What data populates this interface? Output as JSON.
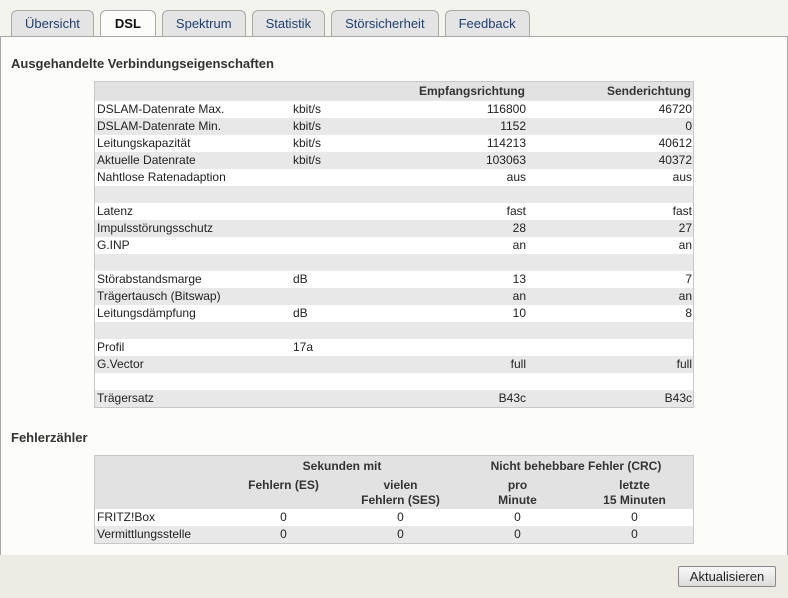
{
  "tabs": [
    {
      "label": "Übersicht"
    },
    {
      "label": "DSL",
      "active": true
    },
    {
      "label": "Spektrum"
    },
    {
      "label": "Statistik"
    },
    {
      "label": "Störsicherheit"
    },
    {
      "label": "Feedback"
    }
  ],
  "properties": {
    "title": "Ausgehandelte Verbindungseigenschaften",
    "headers": {
      "receive": "Empfangsrichtung",
      "send": "Senderichtung"
    },
    "groups": [
      [
        {
          "name": "DSLAM-Datenrate Max.",
          "detail": "kbit/s",
          "receive": 116800,
          "send": 46720
        },
        {
          "name": "DSLAM-Datenrate Min.",
          "detail": "kbit/s",
          "receive": 1152,
          "send": 0
        },
        {
          "name": "Leitungskapazität",
          "detail": "kbit/s",
          "receive": 114213,
          "send": 40612
        },
        {
          "name": "Aktuelle Datenrate",
          "detail": "kbit/s",
          "receive": 103063,
          "send": 40372
        },
        {
          "name": "Nahtlose Ratenadaption",
          "receive": "aus",
          "send": "aus"
        }
      ],
      [
        {
          "name": "Latenz",
          "receive": "fast",
          "send": "fast"
        },
        {
          "name": "Impulsstörungsschutz",
          "receive": 28,
          "send": 27
        },
        {
          "name": "G.INP",
          "receive": "an",
          "send": "an"
        }
      ],
      [
        {
          "name": "Störabstandsmarge",
          "detail": "dB",
          "receive": 13,
          "send": 7
        },
        {
          "name": "Trägertausch (Bitswap)",
          "receive": "an",
          "send": "an"
        },
        {
          "name": "Leitungsdämpfung",
          "detail": "dB",
          "receive": 10,
          "send": 8
        }
      ],
      [
        {
          "name": "Profil",
          "detail": "17a"
        },
        {
          "name": "G.Vector",
          "receive": "full",
          "send": "full"
        }
      ],
      [
        {
          "name": "Trägersatz",
          "receive": "B43c",
          "send": "B43c"
        }
      ]
    ]
  },
  "errors": {
    "title": "Fehlerzähler",
    "header_groups": [
      "Sekunden mit",
      "Nicht behebbare Fehler (CRC)"
    ],
    "columns": [
      [
        "Fehlern (ES)"
      ],
      [
        "vielen",
        "Fehlern (SES)"
      ],
      [
        "pro",
        "Minute"
      ],
      [
        "letzte",
        "15 Minuten"
      ]
    ],
    "rows": [
      {
        "name": "FRITZ!Box",
        "values": [
          0,
          0,
          0,
          0
        ]
      },
      {
        "name": "Vermittlungsstelle",
        "values": [
          0,
          0,
          0,
          0
        ]
      }
    ]
  },
  "button": "Aktualisieren"
}
